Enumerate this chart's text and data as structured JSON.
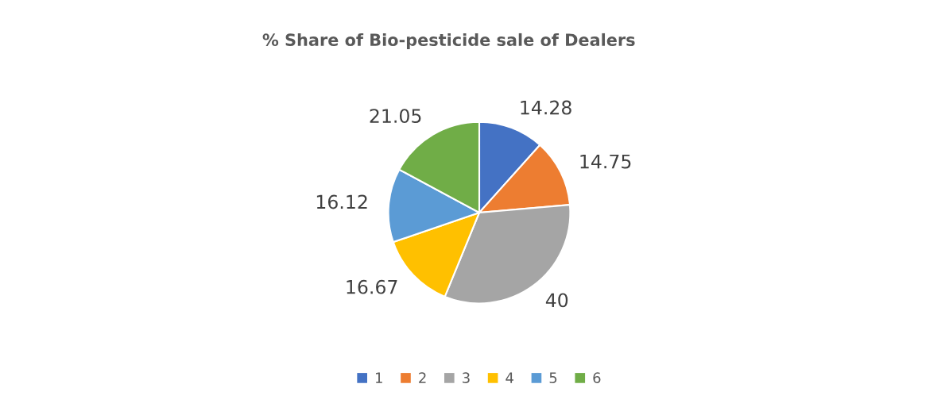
{
  "chart_data": {
    "type": "pie",
    "title": "% Share of Bio-pesticide sale of Dealers",
    "categories": [
      "1",
      "2",
      "3",
      "4",
      "5",
      "6"
    ],
    "values": [
      14.28,
      14.75,
      40,
      16.67,
      16.12,
      21.05
    ],
    "colors": [
      "#4472c4",
      "#ed7d31",
      "#a5a5a5",
      "#ffc000",
      "#5b9bd5",
      "#70ad47"
    ],
    "data_labels": true,
    "legend": "bottom"
  }
}
